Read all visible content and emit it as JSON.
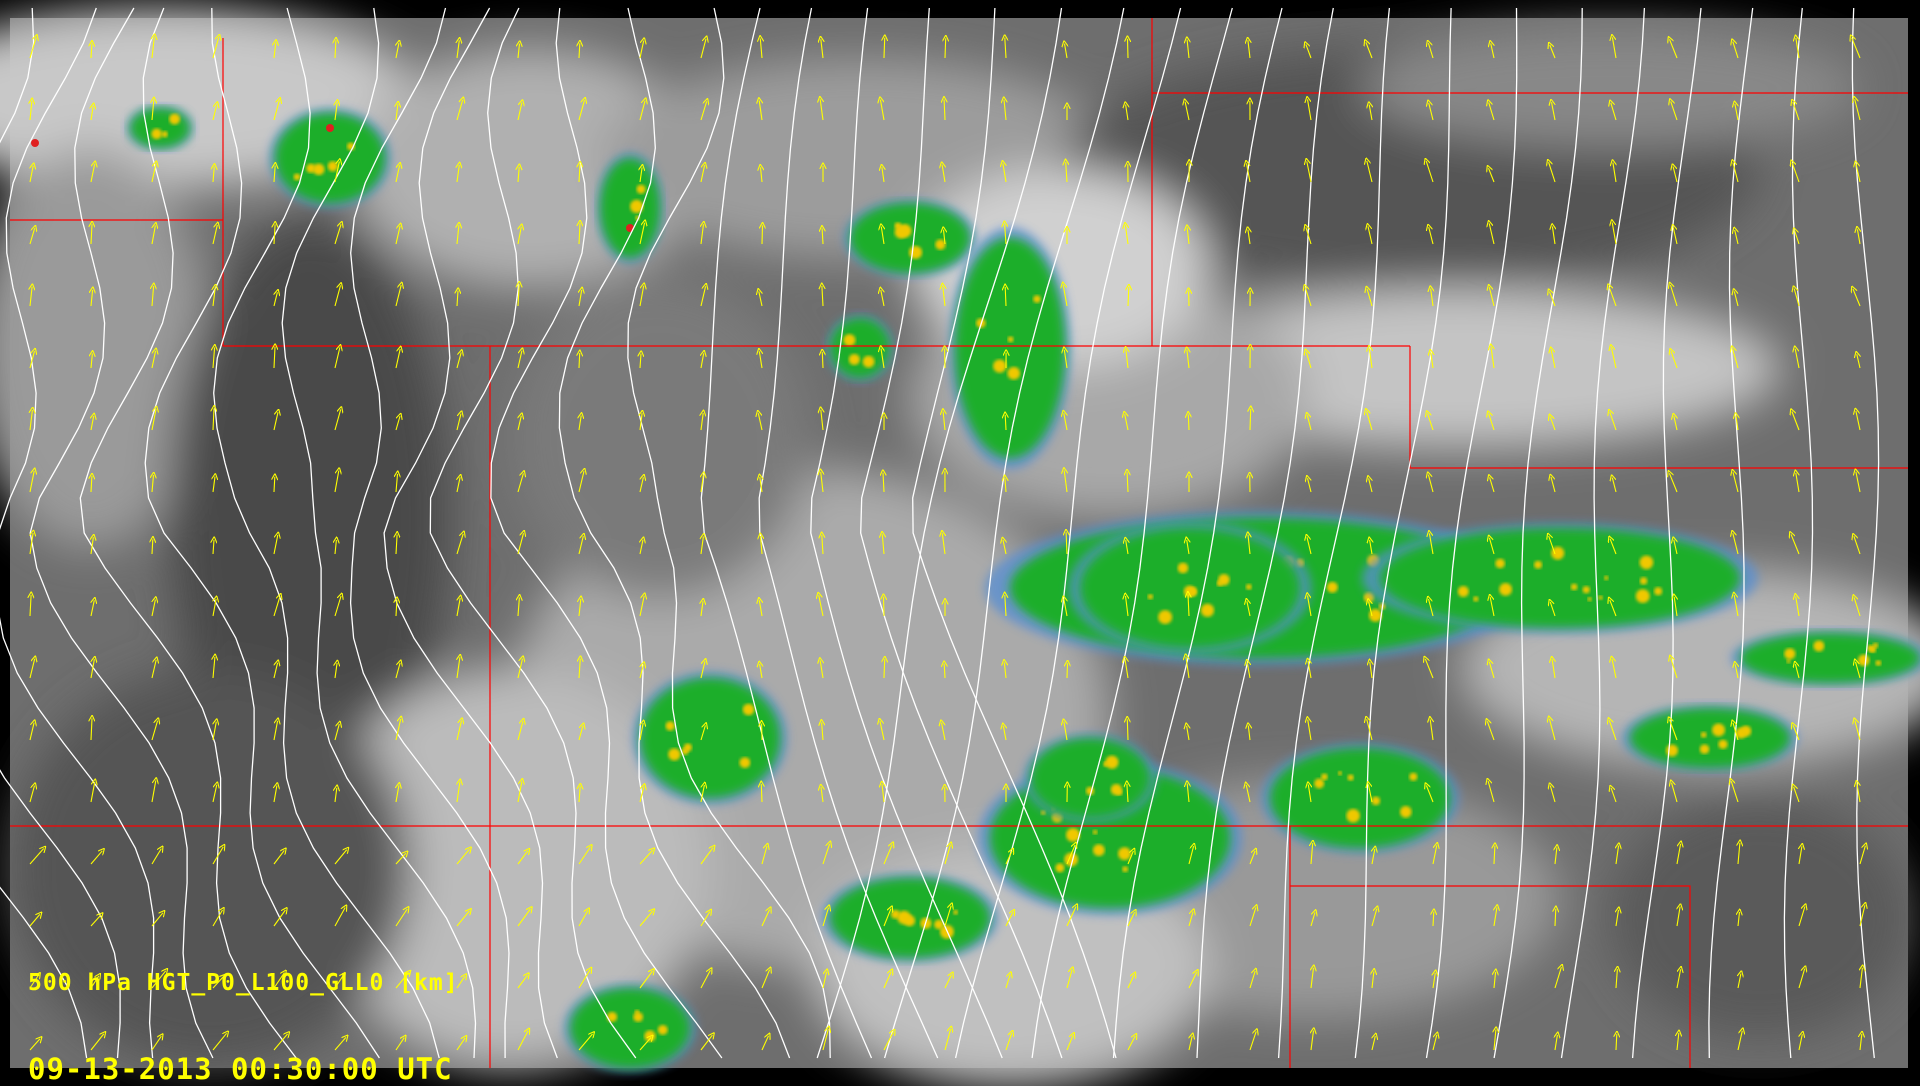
{
  "field_label": "500 hPa HGT_P0_L100_GLL0 [km]",
  "timestamp": "09-13-2013 00:30:00 UTC",
  "layers": {
    "background": "satellite-infrared-grayscale",
    "overlay_radar": "radar-reflectivity",
    "contours": "500 hPa geopotential height",
    "vectors": "wind-arrows",
    "boundaries": "state-borders"
  },
  "colors": {
    "label": "#ffff00",
    "contour": "#ffffff",
    "wind_arrow": "#ffff00",
    "boundary": "#ff0000",
    "radar_low": "#5a8fd0",
    "radar_mid": "#1fae2a",
    "radar_high": "#f0c800",
    "radar_peak": "#e02020"
  }
}
